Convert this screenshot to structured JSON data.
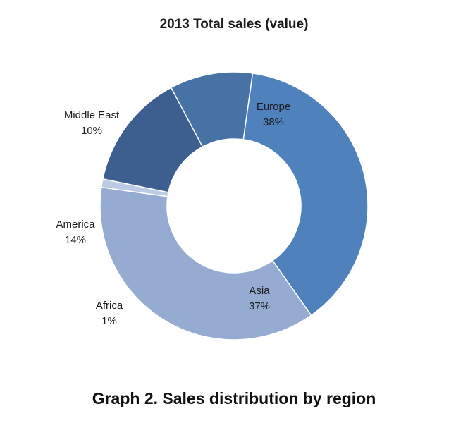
{
  "chart_data": {
    "type": "pie",
    "variant": "donut",
    "title": "2013 Total sales (value)",
    "slices": [
      {
        "label": "Europe",
        "value": 38,
        "display": "38%",
        "color": "#4f81bd"
      },
      {
        "label": "Asia",
        "value": 37,
        "display": "37%",
        "color": "#95abd2"
      },
      {
        "label": "Africa",
        "value": 1,
        "display": "1%",
        "color": "#bccbe3"
      },
      {
        "label": "America",
        "value": 14,
        "display": "14%",
        "color": "#3d5f90"
      },
      {
        "label": "Middle East",
        "value": 10,
        "display": "10%",
        "color": "#4672a5"
      }
    ],
    "legend": "none",
    "data_labels": "category and percentage"
  },
  "caption": "Graph 2. Sales distribution by region"
}
